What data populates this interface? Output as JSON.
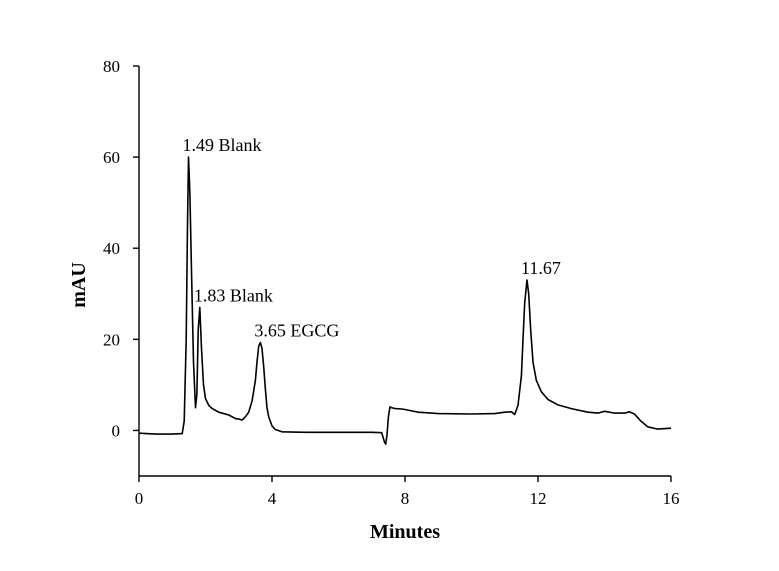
{
  "chart_data": {
    "type": "line",
    "xlabel": "Minutes",
    "ylabel": "mAU",
    "xlim": [
      0,
      16
    ],
    "ylim": [
      -10,
      80
    ],
    "xticks": [
      0,
      4,
      8,
      12,
      16
    ],
    "yticks": [
      0,
      20,
      40,
      60,
      80
    ],
    "grid": false,
    "series": [
      {
        "x": [
          0,
          0.5,
          1.0,
          1.3,
          1.36,
          1.42,
          1.46,
          1.49,
          1.53,
          1.58,
          1.64,
          1.7,
          1.74,
          1.78,
          1.83,
          1.88,
          1.94,
          2.0,
          2.1,
          2.2,
          2.4,
          2.7,
          2.9,
          3.0,
          3.1,
          3.2,
          3.3,
          3.4,
          3.5,
          3.55,
          3.6,
          3.65,
          3.7,
          3.75,
          3.8,
          3.85,
          3.9,
          4.0,
          4.1,
          4.3,
          5.0,
          6.0,
          7.0,
          7.3,
          7.38,
          7.42,
          7.46,
          7.5,
          7.55,
          7.6,
          7.7,
          7.9,
          8.0,
          8.2,
          8.4,
          9.0,
          10.0,
          10.7,
          11.0,
          11.2,
          11.3,
          11.4,
          11.5,
          11.55,
          11.6,
          11.67,
          11.72,
          11.78,
          11.85,
          11.95,
          12.1,
          12.3,
          12.6,
          13.0,
          13.5,
          13.8,
          14.0,
          14.3,
          14.6,
          14.75,
          14.9,
          15.1,
          15.3,
          15.6,
          16.0
        ],
        "values": [
          -0.6,
          -0.8,
          -0.8,
          -0.7,
          2,
          20,
          45,
          60,
          52,
          35,
          15,
          5,
          8,
          22,
          27,
          18,
          10,
          7,
          5.5,
          4.8,
          4.0,
          3.4,
          2.6,
          2.5,
          2.3,
          3.0,
          4.0,
          6.5,
          11,
          15,
          18.5,
          19.3,
          18,
          14,
          9,
          5,
          3,
          1.0,
          0.2,
          -0.3,
          -0.4,
          -0.4,
          -0.4,
          -0.5,
          -2.5,
          -3,
          -1,
          3,
          5.2,
          5.0,
          4.8,
          4.7,
          4.6,
          4.3,
          4.0,
          3.7,
          3.6,
          3.7,
          4.0,
          4.1,
          3.5,
          5.5,
          12,
          20,
          28,
          33,
          30,
          22,
          15,
          11,
          8.5,
          6.8,
          5.6,
          4.8,
          4.0,
          3.8,
          4.2,
          3.8,
          3.8,
          4.1,
          3.6,
          2.0,
          0.8,
          0.3,
          0.5
        ]
      }
    ],
    "annotations": [
      {
        "text": "1.49 Blank",
        "x": 1.49,
        "y": 60
      },
      {
        "text": "1.83 Blank",
        "x": 1.83,
        "y": 27
      },
      {
        "text": "3.65 EGCG",
        "x": 3.65,
        "y": 19.3
      },
      {
        "text": "11.67",
        "x": 11.67,
        "y": 33
      }
    ]
  }
}
